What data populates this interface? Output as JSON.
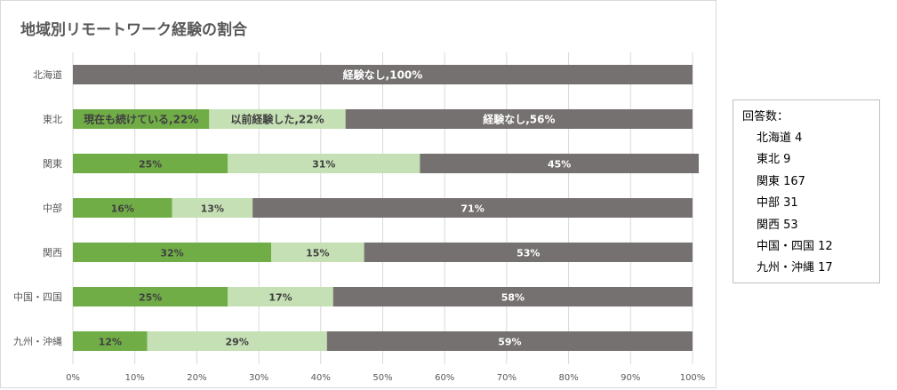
{
  "chart_data": {
    "type": "bar",
    "orientation": "horizontal",
    "stacked": "percent",
    "title": "地域別リモートワーク経験の割合",
    "categories": [
      "北海道",
      "東北",
      "関東",
      "中部",
      "関西",
      "中国・四国",
      "九州・沖縄"
    ],
    "series": [
      {
        "name": "現在も続けている",
        "color": "#70ad47",
        "label_color": "#404040",
        "values": [
          0,
          22,
          25,
          16,
          32,
          25,
          12
        ]
      },
      {
        "name": "以前経験した",
        "color": "#c5e0b4",
        "label_color": "#404040",
        "values": [
          0,
          22,
          31,
          13,
          15,
          17,
          29
        ]
      },
      {
        "name": "経験なし",
        "color": "#767171",
        "label_color": "#ffffff",
        "values": [
          100,
          56,
          45,
          71,
          53,
          58,
          59
        ]
      }
    ],
    "data_labels": [
      [
        "",
        "",
        "経験なし,100%"
      ],
      [
        "現在も続けている,22%",
        "以前経験した,22%",
        "経験なし,56%"
      ],
      [
        "25%",
        "31%",
        "45%"
      ],
      [
        "16%",
        "13%",
        "71%"
      ],
      [
        "32%",
        "15%",
        "53%"
      ],
      [
        "25%",
        "17%",
        "58%"
      ],
      [
        "12%",
        "29%",
        "59%"
      ]
    ],
    "xlim": [
      0,
      100
    ],
    "x_ticks": [
      "0%",
      "10%",
      "20%",
      "30%",
      "40%",
      "50%",
      "60%",
      "70%",
      "80%",
      "90%",
      "100%"
    ],
    "grid": "vertical",
    "legend": "none"
  },
  "side_box": {
    "heading": "回答数：",
    "items": [
      "北海道 4",
      "東北 9",
      "関東 167",
      "中部 31",
      "関西 53",
      "中国・四国 12",
      "九州・沖縄 17"
    ]
  }
}
